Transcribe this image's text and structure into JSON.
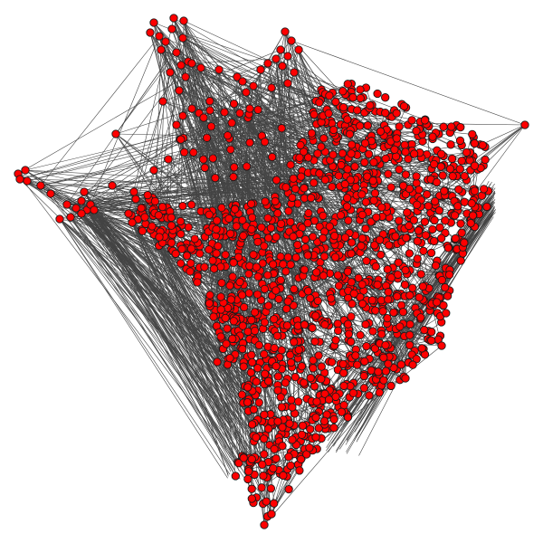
{
  "diagram": {
    "type": "network-graph",
    "colors": {
      "background": "#ffffff",
      "node_fill": "#ff0000",
      "node_stroke": "#1a1a1a",
      "edge": "#444444"
    },
    "legend": "none",
    "labels": "none"
  }
}
